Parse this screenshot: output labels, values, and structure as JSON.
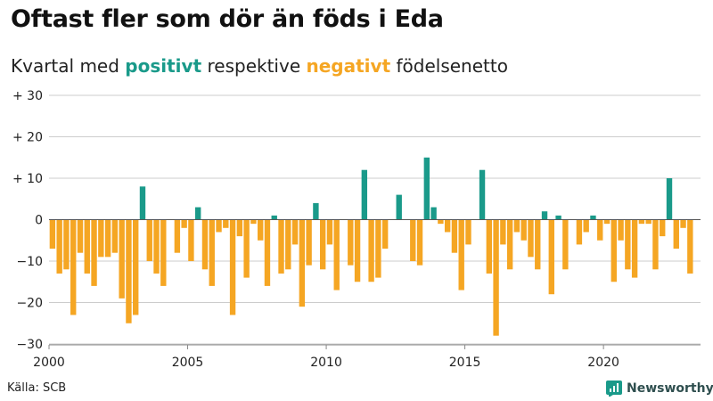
{
  "title": "Oftast fler som dör än föds i Eda",
  "subtitle": {
    "prefix": "Kvartal med",
    "positive_word": "positivt",
    "middle": "respektive",
    "negative_word": "negativt",
    "suffix": "födelsenetto"
  },
  "source": "Källa: SCB",
  "logo_text": "Newsworthy",
  "colors": {
    "positive": "#1a9a8a",
    "negative": "#f5a623",
    "grid": "#cccccc",
    "axis": "#888888"
  },
  "chart_data": {
    "type": "bar",
    "title": "Oftast fler som dör än föds i Eda",
    "subtitle": "Kvartal med positivt respektive negativt födelsenetto",
    "xlabel": "",
    "ylabel": "",
    "ylim": [
      -30,
      30
    ],
    "y_ticks": [
      30,
      20,
      10,
      0,
      -10,
      -20,
      -30
    ],
    "y_tick_labels": [
      "+ 30",
      "+ 20",
      "+ 10",
      "0",
      "−10",
      "−20",
      "−30"
    ],
    "x_start": 2000,
    "x_range": [
      2000,
      2023.5
    ],
    "x_ticks": [
      2000,
      2005,
      2010,
      2015,
      2020
    ],
    "x_tick_labels": [
      "2000",
      "2005",
      "2010",
      "2015",
      "2020"
    ],
    "values": [
      -7,
      -13,
      -12,
      -23,
      -8,
      -13,
      -16,
      -9,
      -9,
      -8,
      -19,
      -25,
      -23,
      8,
      -10,
      -13,
      -16,
      0,
      -8,
      -2,
      -10,
      3,
      -12,
      -16,
      -3,
      -2,
      -23,
      -4,
      -14,
      -1,
      -5,
      -16,
      1,
      -13,
      -12,
      -6,
      -21,
      -11,
      4,
      -12,
      -6,
      -17,
      0,
      -11,
      -15,
      12,
      -15,
      -14,
      -7,
      0,
      6,
      0,
      -10,
      -11,
      15,
      3,
      -1,
      -3,
      -8,
      -17,
      -6,
      0,
      12,
      -13,
      -28,
      -6,
      -12,
      -3,
      -5,
      -9,
      -12,
      2,
      -18,
      1,
      -12,
      0,
      -6,
      -3,
      1,
      -5,
      -1,
      -15,
      -5,
      -12,
      -14,
      -1,
      -1,
      -12,
      -4,
      10,
      -7,
      -2,
      -13
    ]
  }
}
